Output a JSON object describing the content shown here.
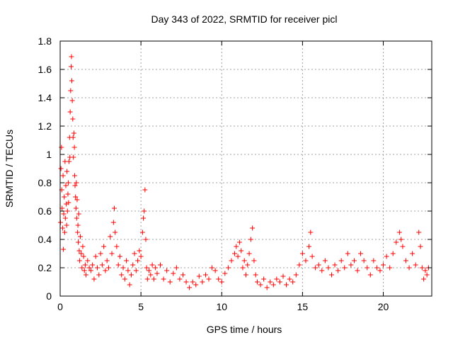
{
  "chart_data": {
    "type": "scatter",
    "title": "Day 343 of 2022, SRMTID for receiver picl",
    "xlabel": "GPS time / hours",
    "ylabel": "SRMTID / TECUs",
    "xlim": [
      0,
      23
    ],
    "ylim": [
      0,
      1.8
    ],
    "xticks": [
      0,
      5,
      10,
      15,
      20
    ],
    "xtick_labels": [
      "0",
      "5",
      "10",
      "15",
      "20"
    ],
    "yticks": [
      0,
      0.2,
      0.4,
      0.6,
      0.8,
      1.0,
      1.2,
      1.4,
      1.6,
      1.8
    ],
    "ytick_labels": [
      "0",
      "0.2",
      "0.4",
      "0.6",
      "0.8",
      "1",
      "1.2",
      "1.4",
      "1.6",
      "1.8"
    ],
    "grid": true,
    "marker": "plus",
    "color": "#ff0000",
    "series": [
      {
        "name": "SRMTID",
        "points": [
          [
            0.02,
            0.52
          ],
          [
            0.05,
            0.9
          ],
          [
            0.08,
            1.05
          ],
          [
            0.1,
            0.75
          ],
          [
            0.12,
            0.62
          ],
          [
            0.15,
            0.48
          ],
          [
            0.18,
            0.85
          ],
          [
            0.2,
            0.33
          ],
          [
            0.22,
            0.58
          ],
          [
            0.25,
            0.7
          ],
          [
            0.28,
            0.45
          ],
          [
            0.3,
            0.95
          ],
          [
            0.32,
            0.55
          ],
          [
            0.35,
            0.78
          ],
          [
            0.38,
            0.65
          ],
          [
            0.4,
            0.5
          ],
          [
            0.42,
            0.88
          ],
          [
            0.45,
            0.6
          ],
          [
            0.48,
            0.72
          ],
          [
            0.5,
            0.8
          ],
          [
            0.52,
            0.66
          ],
          [
            0.55,
            0.95
          ],
          [
            0.58,
            1.12
          ],
          [
            0.6,
            0.98
          ],
          [
            0.62,
            1.3
          ],
          [
            0.65,
            1.45
          ],
          [
            0.68,
            1.62
          ],
          [
            0.7,
            1.69
          ],
          [
            0.72,
            1.52
          ],
          [
            0.75,
            1.38
          ],
          [
            0.78,
            1.25
          ],
          [
            0.8,
            1.12
          ],
          [
            0.82,
            0.98
          ],
          [
            0.85,
            1.15
          ],
          [
            0.88,
            1.05
          ],
          [
            0.9,
            0.85
          ],
          [
            0.92,
            0.78
          ],
          [
            0.95,
            0.7
          ],
          [
            0.98,
            0.62
          ],
          [
            1.0,
            0.8
          ],
          [
            1.02,
            0.55
          ],
          [
            1.05,
            0.68
          ],
          [
            1.08,
            0.45
          ],
          [
            1.1,
            0.5
          ],
          [
            1.12,
            0.38
          ],
          [
            1.15,
            0.58
          ],
          [
            1.18,
            0.32
          ],
          [
            1.2,
            0.25
          ],
          [
            1.25,
            0.42
          ],
          [
            1.3,
            0.3
          ],
          [
            1.35,
            0.2
          ],
          [
            1.4,
            0.35
          ],
          [
            1.45,
            0.28
          ],
          [
            1.5,
            0.18
          ],
          [
            1.55,
            0.22
          ],
          [
            1.6,
            0.15
          ],
          [
            1.7,
            0.25
          ],
          [
            1.8,
            0.2
          ],
          [
            1.9,
            0.18
          ],
          [
            2.0,
            0.22
          ],
          [
            2.1,
            0.12
          ],
          [
            2.2,
            0.28
          ],
          [
            2.3,
            0.2
          ],
          [
            2.4,
            0.15
          ],
          [
            2.5,
            0.3
          ],
          [
            2.6,
            0.22
          ],
          [
            2.7,
            0.35
          ],
          [
            2.8,
            0.18
          ],
          [
            2.9,
            0.25
          ],
          [
            3.0,
            0.2
          ],
          [
            3.1,
            0.42
          ],
          [
            3.2,
            0.3
          ],
          [
            3.3,
            0.52
          ],
          [
            3.35,
            0.62
          ],
          [
            3.4,
            0.45
          ],
          [
            3.5,
            0.35
          ],
          [
            3.6,
            0.22
          ],
          [
            3.7,
            0.28
          ],
          [
            3.8,
            0.15
          ],
          [
            3.9,
            0.2
          ],
          [
            4.0,
            0.12
          ],
          [
            4.1,
            0.25
          ],
          [
            4.2,
            0.18
          ],
          [
            4.3,
            0.08
          ],
          [
            4.4,
            0.15
          ],
          [
            4.5,
            0.22
          ],
          [
            4.6,
            0.3
          ],
          [
            4.7,
            0.18
          ],
          [
            4.8,
            0.25
          ],
          [
            4.9,
            0.32
          ],
          [
            5.0,
            0.28
          ],
          [
            5.1,
            0.45
          ],
          [
            5.15,
            0.55
          ],
          [
            5.2,
            0.6
          ],
          [
            5.25,
            0.75
          ],
          [
            5.3,
            0.4
          ],
          [
            5.35,
            0.2
          ],
          [
            5.4,
            0.12
          ],
          [
            5.5,
            0.18
          ],
          [
            5.6,
            0.15
          ],
          [
            5.7,
            0.22
          ],
          [
            5.8,
            0.12
          ],
          [
            5.9,
            0.2
          ],
          [
            6.0,
            0.16
          ],
          [
            6.2,
            0.22
          ],
          [
            6.4,
            0.12
          ],
          [
            6.6,
            0.18
          ],
          [
            6.8,
            0.1
          ],
          [
            7.0,
            0.16
          ],
          [
            7.2,
            0.2
          ],
          [
            7.4,
            0.12
          ],
          [
            7.6,
            0.15
          ],
          [
            7.8,
            0.1
          ],
          [
            8.0,
            0.06
          ],
          [
            8.2,
            0.1
          ],
          [
            8.4,
            0.08
          ],
          [
            8.6,
            0.14
          ],
          [
            8.8,
            0.1
          ],
          [
            9.0,
            0.15
          ],
          [
            9.2,
            0.12
          ],
          [
            9.4,
            0.2
          ],
          [
            9.6,
            0.18
          ],
          [
            9.8,
            0.12
          ],
          [
            10.0,
            0.1
          ],
          [
            10.2,
            0.16
          ],
          [
            10.4,
            0.2
          ],
          [
            10.6,
            0.25
          ],
          [
            10.8,
            0.3
          ],
          [
            10.9,
            0.35
          ],
          [
            11.0,
            0.28
          ],
          [
            11.1,
            0.38
          ],
          [
            11.2,
            0.32
          ],
          [
            11.3,
            0.2
          ],
          [
            11.4,
            0.25
          ],
          [
            11.5,
            0.15
          ],
          [
            11.6,
            0.22
          ],
          [
            11.7,
            0.3
          ],
          [
            11.8,
            0.4
          ],
          [
            11.9,
            0.48
          ],
          [
            12.0,
            0.25
          ],
          [
            12.1,
            0.15
          ],
          [
            12.2,
            0.1
          ],
          [
            12.4,
            0.08
          ],
          [
            12.6,
            0.12
          ],
          [
            12.8,
            0.06
          ],
          [
            13.0,
            0.1
          ],
          [
            13.2,
            0.08
          ],
          [
            13.4,
            0.12
          ],
          [
            13.6,
            0.1
          ],
          [
            13.8,
            0.14
          ],
          [
            14.0,
            0.08
          ],
          [
            14.2,
            0.12
          ],
          [
            14.4,
            0.1
          ],
          [
            14.6,
            0.15
          ],
          [
            14.8,
            0.22
          ],
          [
            15.0,
            0.3
          ],
          [
            15.2,
            0.25
          ],
          [
            15.4,
            0.35
          ],
          [
            15.5,
            0.45
          ],
          [
            15.6,
            0.28
          ],
          [
            15.8,
            0.2
          ],
          [
            16.0,
            0.22
          ],
          [
            16.2,
            0.18
          ],
          [
            16.4,
            0.25
          ],
          [
            16.6,
            0.2
          ],
          [
            16.8,
            0.15
          ],
          [
            17.0,
            0.22
          ],
          [
            17.2,
            0.18
          ],
          [
            17.4,
            0.25
          ],
          [
            17.6,
            0.2
          ],
          [
            17.8,
            0.3
          ],
          [
            18.0,
            0.22
          ],
          [
            18.2,
            0.25
          ],
          [
            18.4,
            0.18
          ],
          [
            18.6,
            0.3
          ],
          [
            18.8,
            0.25
          ],
          [
            19.0,
            0.2
          ],
          [
            19.2,
            0.15
          ],
          [
            19.4,
            0.25
          ],
          [
            19.6,
            0.2
          ],
          [
            19.8,
            0.18
          ],
          [
            20.0,
            0.22
          ],
          [
            20.2,
            0.28
          ],
          [
            20.4,
            0.2
          ],
          [
            20.6,
            0.3
          ],
          [
            20.8,
            0.38
          ],
          [
            21.0,
            0.45
          ],
          [
            21.1,
            0.4
          ],
          [
            21.2,
            0.35
          ],
          [
            21.4,
            0.25
          ],
          [
            21.6,
            0.2
          ],
          [
            21.8,
            0.3
          ],
          [
            22.0,
            0.22
          ],
          [
            22.2,
            0.45
          ],
          [
            22.3,
            0.35
          ],
          [
            22.4,
            0.2
          ],
          [
            22.5,
            0.12
          ],
          [
            22.6,
            0.18
          ],
          [
            22.7,
            0.15
          ],
          [
            22.8,
            0.2
          ]
        ]
      }
    ]
  }
}
